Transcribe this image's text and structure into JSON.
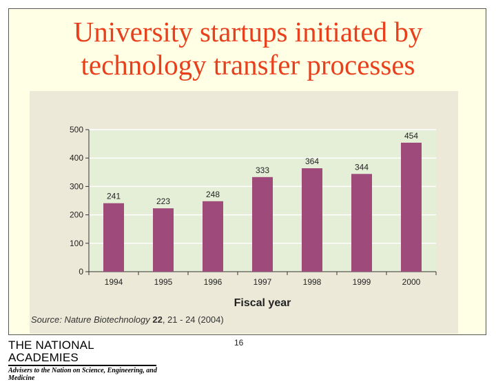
{
  "slide": {
    "title_line1": "University startups initiated by",
    "title_line2": "technology transfer processes",
    "source_label": "Source",
    "source_sep": ":",
    "source_journal": " Nature Biotechnology ",
    "source_volume": "22",
    "source_pages": ", 21 - 24 (2004)",
    "page_number": "16",
    "logo_main": "THE NATIONAL ACADEMIES",
    "logo_tagline": "Advisers to the Nation on Science, Engineering, and Medicine"
  },
  "colors": {
    "title": "#e8401c",
    "bar": "#9e4a7a",
    "panel": "#ece9d8",
    "plot": "#e5eed6",
    "grid": "#ffffff"
  },
  "chart_data": {
    "type": "bar",
    "title": "",
    "xlabel": "Fiscal year",
    "ylabel": "",
    "categories": [
      "1994",
      "1995",
      "1996",
      "1997",
      "1998",
      "1999",
      "2000"
    ],
    "values": [
      241,
      223,
      248,
      333,
      364,
      344,
      454
    ],
    "data_labels": [
      "241",
      "223",
      "248",
      "333",
      "364",
      "344",
      "454"
    ],
    "yticks": [
      0,
      100,
      200,
      300,
      400,
      500
    ],
    "ytick_labels": [
      "0",
      "100",
      "200",
      "300",
      "400",
      "500"
    ],
    "ylim": [
      0,
      500
    ],
    "grid": true
  }
}
